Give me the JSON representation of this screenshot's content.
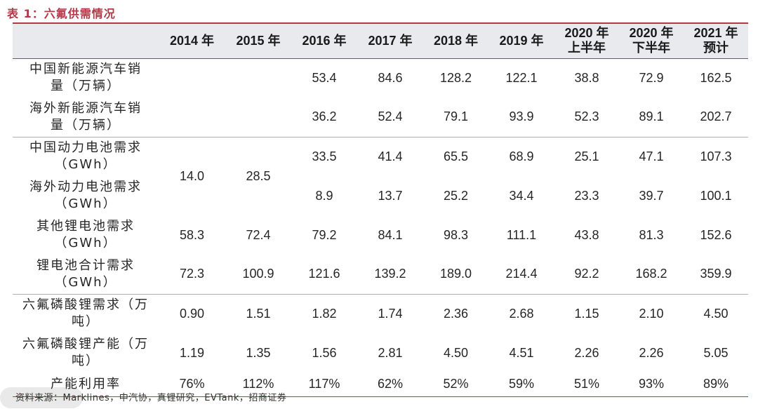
{
  "title": "表 1：六氟供需情况",
  "columns": [
    {
      "line1": "2014 年",
      "line2": ""
    },
    {
      "line1": "2015 年",
      "line2": ""
    },
    {
      "line1": "2016 年",
      "line2": ""
    },
    {
      "line1": "2017 年",
      "line2": ""
    },
    {
      "line1": "2018 年",
      "line2": ""
    },
    {
      "line1": "2019 年",
      "line2": ""
    },
    {
      "line1": "2020 年",
      "line2": "上半年"
    },
    {
      "line1": "2020 年",
      "line2": "下半年"
    },
    {
      "line1": "2021 年",
      "line2": "预计"
    }
  ],
  "rows": [
    {
      "label_line1": "中国新能源汽车销",
      "label_line2": "量（万辆）",
      "values": [
        "",
        "",
        "53.4",
        "84.6",
        "128.2",
        "122.1",
        "38.8",
        "72.9",
        "162.5"
      ]
    },
    {
      "label_line1": "海外新能源汽车销",
      "label_line2": "量（万辆）",
      "values": [
        "",
        "",
        "36.2",
        "52.4",
        "79.1",
        "93.9",
        "52.3",
        "89.1",
        "202.7"
      ]
    },
    {
      "label_line1": "中国动力电池需求",
      "label_line2": "（GWh）",
      "values": [
        "14.0",
        "28.5",
        "33.5",
        "41.4",
        "65.5",
        "68.9",
        "25.1",
        "47.1",
        "107.3"
      ]
    },
    {
      "label_line1": "海外动力电池需求",
      "label_line2": "（GWh）",
      "values": [
        "",
        "",
        "8.9",
        "13.7",
        "25.2",
        "34.4",
        "23.3",
        "39.7",
        "100.1"
      ]
    },
    {
      "label_line1": "其他锂电池需求",
      "label_line2": "（GWh）",
      "values": [
        "58.3",
        "72.4",
        "79.2",
        "84.1",
        "98.3",
        "111.1",
        "43.8",
        "81.3",
        "152.6"
      ]
    },
    {
      "label_line1": "锂电池合计需求",
      "label_line2": "（GWh）",
      "values": [
        "72.3",
        "100.9",
        "121.6",
        "139.2",
        "189.0",
        "214.4",
        "92.2",
        "168.2",
        "359.9"
      ]
    },
    {
      "label_line1": "六氟磷酸锂需求（万",
      "label_line2": "吨）",
      "values": [
        "0.90",
        "1.51",
        "1.82",
        "1.74",
        "2.36",
        "2.68",
        "1.15",
        "2.10",
        "4.50"
      ]
    },
    {
      "label_line1": "六氟磷酸锂产能（万",
      "label_line2": "吨）",
      "values": [
        "1.19",
        "1.35",
        "1.56",
        "2.81",
        "4.50",
        "4.51",
        "2.26",
        "2.26",
        "5.05"
      ]
    },
    {
      "label_line1": "产能利用率",
      "label_line2": "",
      "values": [
        "76%",
        "112%",
        "117%",
        "62%",
        "52%",
        "59%",
        "51%",
        "93%",
        "89%"
      ]
    }
  ],
  "source": "资料来源：Marklines，中汽协，真锂研究，EVTank，招商证券"
}
